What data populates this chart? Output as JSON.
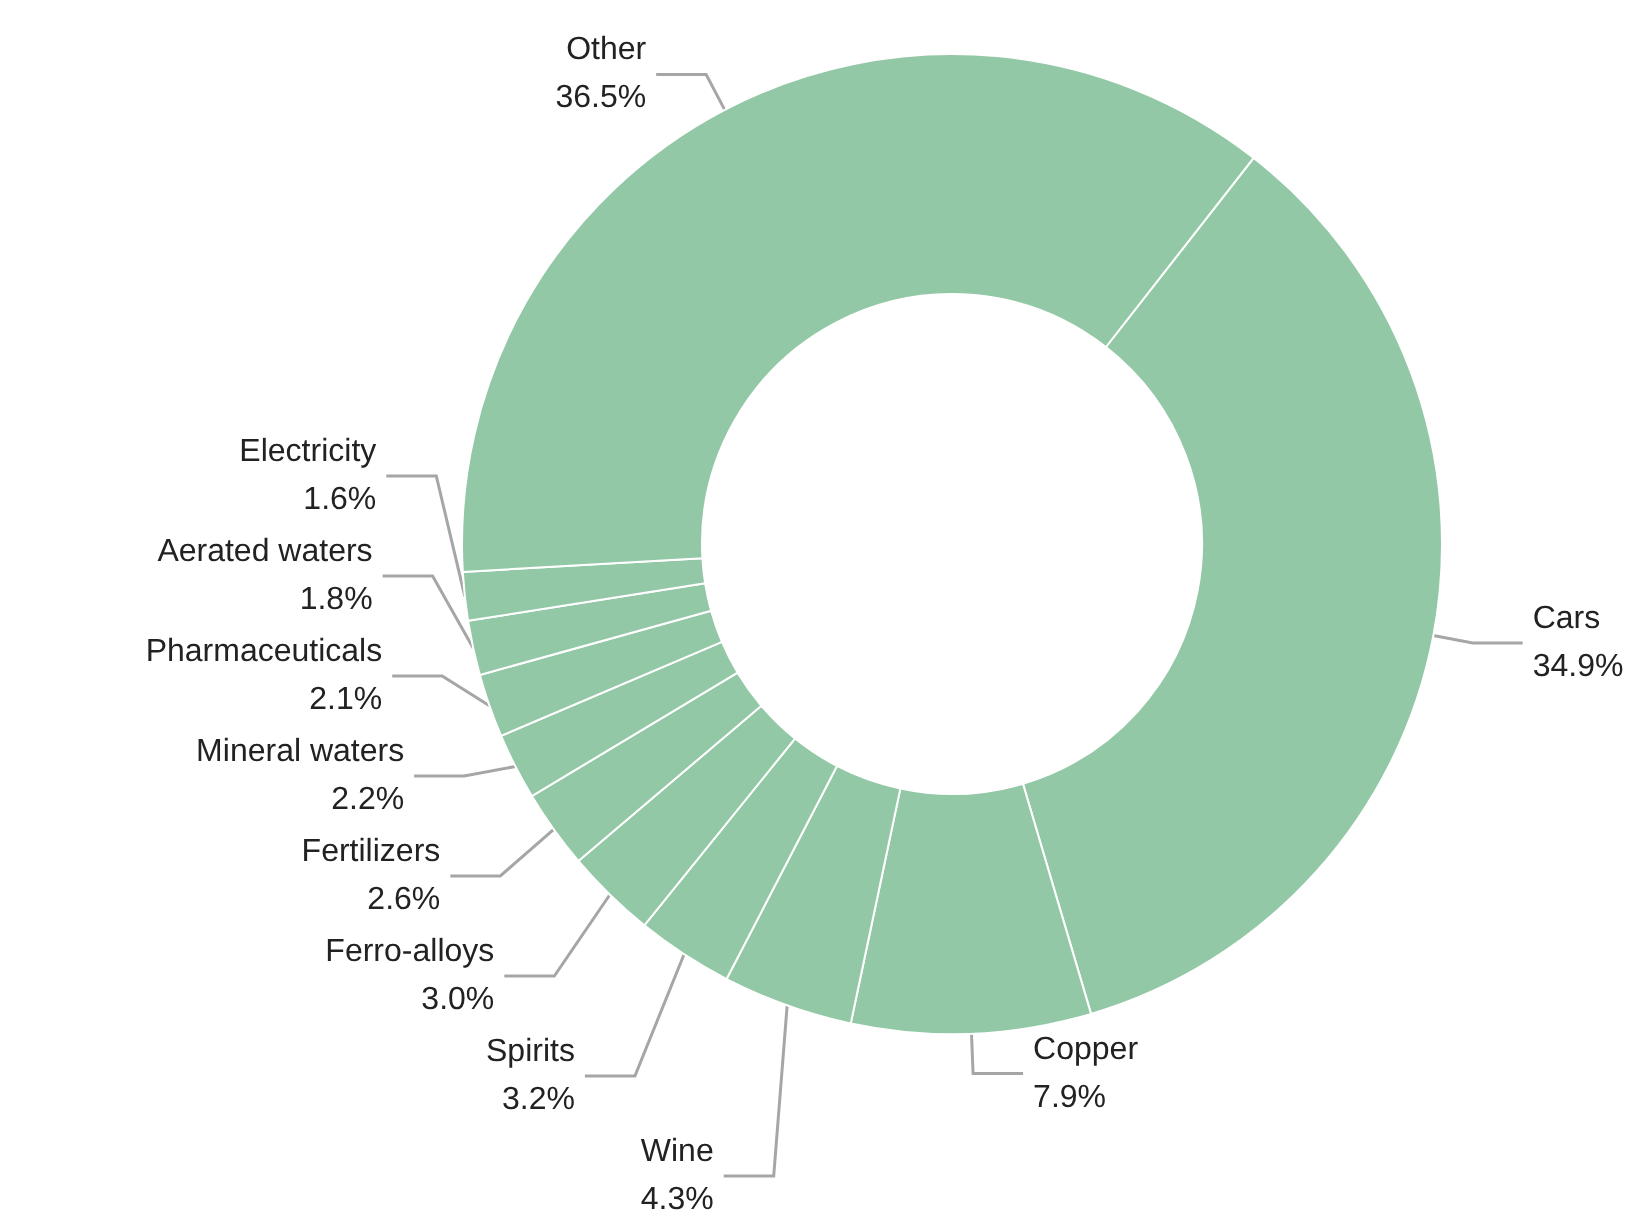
{
  "chart_data": {
    "type": "donut",
    "categories": [
      "Cars",
      "Copper",
      "Wine",
      "Spirits",
      "Ferro-alloys",
      "Fertilizers",
      "Mineral waters",
      "Pharmaceuticals",
      "Aerated waters",
      "Electricity",
      "Other"
    ],
    "values": [
      34.9,
      7.9,
      4.3,
      3.2,
      3.0,
      2.6,
      2.2,
      2.1,
      1.8,
      1.6,
      36.5
    ],
    "value_labels": [
      "34.9%",
      "7.9%",
      "4.3%",
      "3.2%",
      "3.0%",
      "2.6%",
      "2.2%",
      "2.1%",
      "1.8%",
      "1.6%",
      "36.5%"
    ],
    "colors": [
      "#93c8a6",
      "#93c8a6",
      "#93c8a6",
      "#93c8a6",
      "#93c8a6",
      "#93c8a6",
      "#93c8a6",
      "#93c8a6",
      "#93c8a6",
      "#93c8a6",
      "#93c8a6"
    ],
    "legend": false
  }
}
